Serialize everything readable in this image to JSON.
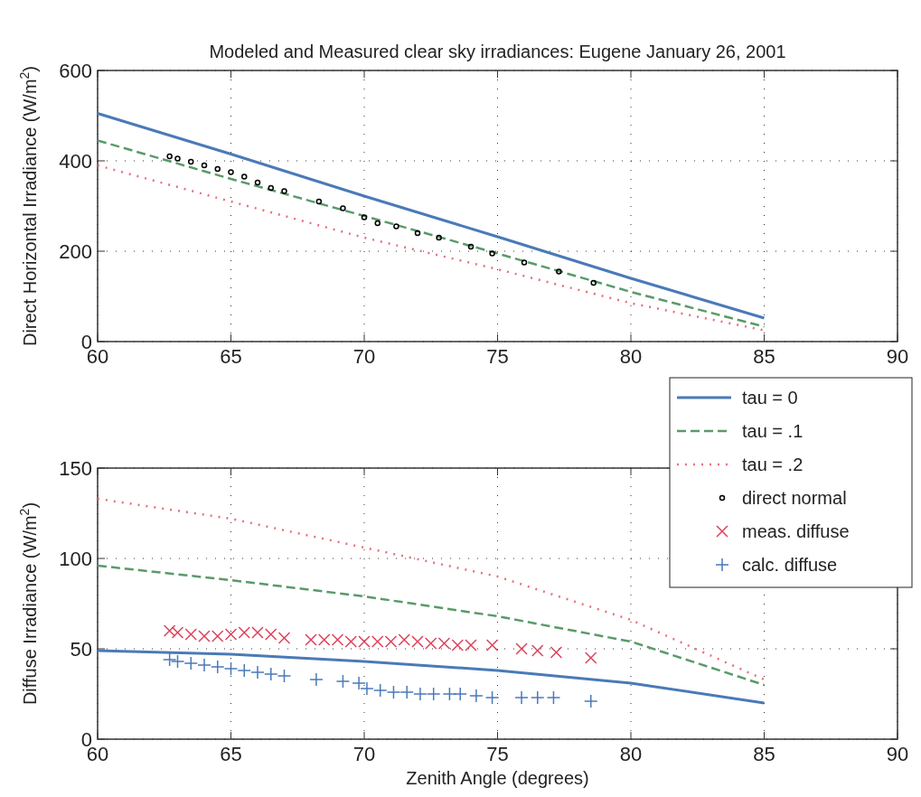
{
  "chart_data": [
    {
      "type": "line",
      "title": "Modeled and Measured clear sky irradiances: Eugene January 26, 2001",
      "ylabel": "Direct Horizontal Irradiance (W/m$^{2}$)",
      "xlim": [
        60,
        90
      ],
      "ylim": [
        0,
        600
      ],
      "xticks": [
        60,
        65,
        70,
        75,
        80,
        85,
        90
      ],
      "yticks": [
        0,
        200,
        400,
        600
      ],
      "grid": true,
      "legend": "bottom right",
      "series": [
        {
          "name": "tau = 0",
          "color": "#4a7ab8",
          "line_style": "solid",
          "marker": "none",
          "x": [
            60,
            65,
            70,
            75,
            80,
            85
          ],
          "values": [
            505,
            415,
            322,
            232,
            140,
            52
          ]
        },
        {
          "name": "tau = .1",
          "color": "#5a9a6a",
          "line_style": "dashed",
          "marker": "none",
          "x": [
            60,
            65,
            70,
            75,
            80,
            85
          ],
          "values": [
            445,
            360,
            278,
            195,
            110,
            33
          ]
        },
        {
          "name": "tau = .2",
          "color": "#e8707f",
          "line_style": "dotted",
          "marker": "none",
          "x": [
            60,
            65,
            70,
            75,
            80,
            85
          ],
          "values": [
            390,
            310,
            230,
            160,
            85,
            25
          ]
        },
        {
          "name": "direct normal",
          "type": "scatter",
          "color": "#000000",
          "marker": "circle",
          "x": [
            62.7,
            63,
            63.5,
            64,
            64.5,
            65,
            65.5,
            66,
            66.5,
            67,
            68.3,
            69.2,
            70,
            70.5,
            71.2,
            72,
            72.8,
            74,
            74.8,
            76,
            77.3,
            78.6
          ],
          "values": [
            410,
            405,
            398,
            390,
            382,
            375,
            365,
            352,
            340,
            333,
            310,
            295,
            275,
            262,
            255,
            240,
            230,
            210,
            195,
            175,
            155,
            130
          ]
        }
      ]
    },
    {
      "type": "line",
      "xlabel": "Zenith Angle (degrees)",
      "ylabel": "Diffuse Irradiance (W/m$^{2}$)",
      "xlim": [
        60,
        90
      ],
      "ylim": [
        0,
        150
      ],
      "xticks": [
        60,
        65,
        70,
        75,
        80,
        85,
        90
      ],
      "yticks": [
        0,
        50,
        100,
        150
      ],
      "grid": true,
      "legend": "top right",
      "series": [
        {
          "name": "tau = 0",
          "color": "#4a7ab8",
          "line_style": "solid",
          "marker": "none",
          "x": [
            60,
            65,
            70,
            75,
            80,
            85
          ],
          "values": [
            49,
            47,
            43,
            38,
            31,
            20
          ]
        },
        {
          "name": "tau = .1",
          "color": "#5a9a6a",
          "line_style": "dashed",
          "marker": "none",
          "x": [
            60,
            65,
            70,
            75,
            80,
            85
          ],
          "values": [
            96,
            88,
            79,
            68,
            54,
            30
          ]
        },
        {
          "name": "tau = .2",
          "color": "#e8707f",
          "line_style": "dotted",
          "marker": "none",
          "x": [
            60,
            65,
            70,
            75,
            80,
            85
          ],
          "values": [
            133,
            122,
            106,
            90,
            66,
            33
          ]
        },
        {
          "name": "meas. diffuse",
          "type": "scatter",
          "color": "#e0405a",
          "marker": "cross",
          "x": [
            62.7,
            63,
            63.5,
            64,
            64.5,
            65,
            65.5,
            66,
            66.5,
            67,
            68,
            68.5,
            69,
            69.5,
            70,
            70.5,
            71,
            71.5,
            72,
            72.5,
            73,
            73.5,
            74,
            74.8,
            75.9,
            76.5,
            77.2,
            78.5
          ],
          "values": [
            60,
            59,
            58,
            57,
            57,
            58,
            59,
            59,
            58,
            56,
            55,
            55,
            55,
            54,
            54,
            54,
            54,
            55,
            54,
            53,
            53,
            52,
            52,
            52,
            50,
            49,
            48,
            45
          ]
        },
        {
          "name": "calc. diffuse",
          "type": "scatter",
          "color": "#4a7ab8",
          "marker": "plus",
          "x": [
            62.7,
            63,
            63.5,
            64,
            64.5,
            65,
            65.5,
            66,
            66.5,
            67,
            68.2,
            69.2,
            69.8,
            70.1,
            70.6,
            71.1,
            71.6,
            72.1,
            72.6,
            73.2,
            73.6,
            74.2,
            74.8,
            75.9,
            76.5,
            77.1,
            78.5
          ],
          "values": [
            44,
            43,
            42,
            41,
            40,
            39,
            38,
            37,
            36,
            35,
            33,
            32,
            31,
            28,
            27,
            26,
            26,
            25,
            25,
            25,
            25,
            24,
            23,
            23,
            23,
            23,
            21
          ]
        }
      ]
    }
  ]
}
